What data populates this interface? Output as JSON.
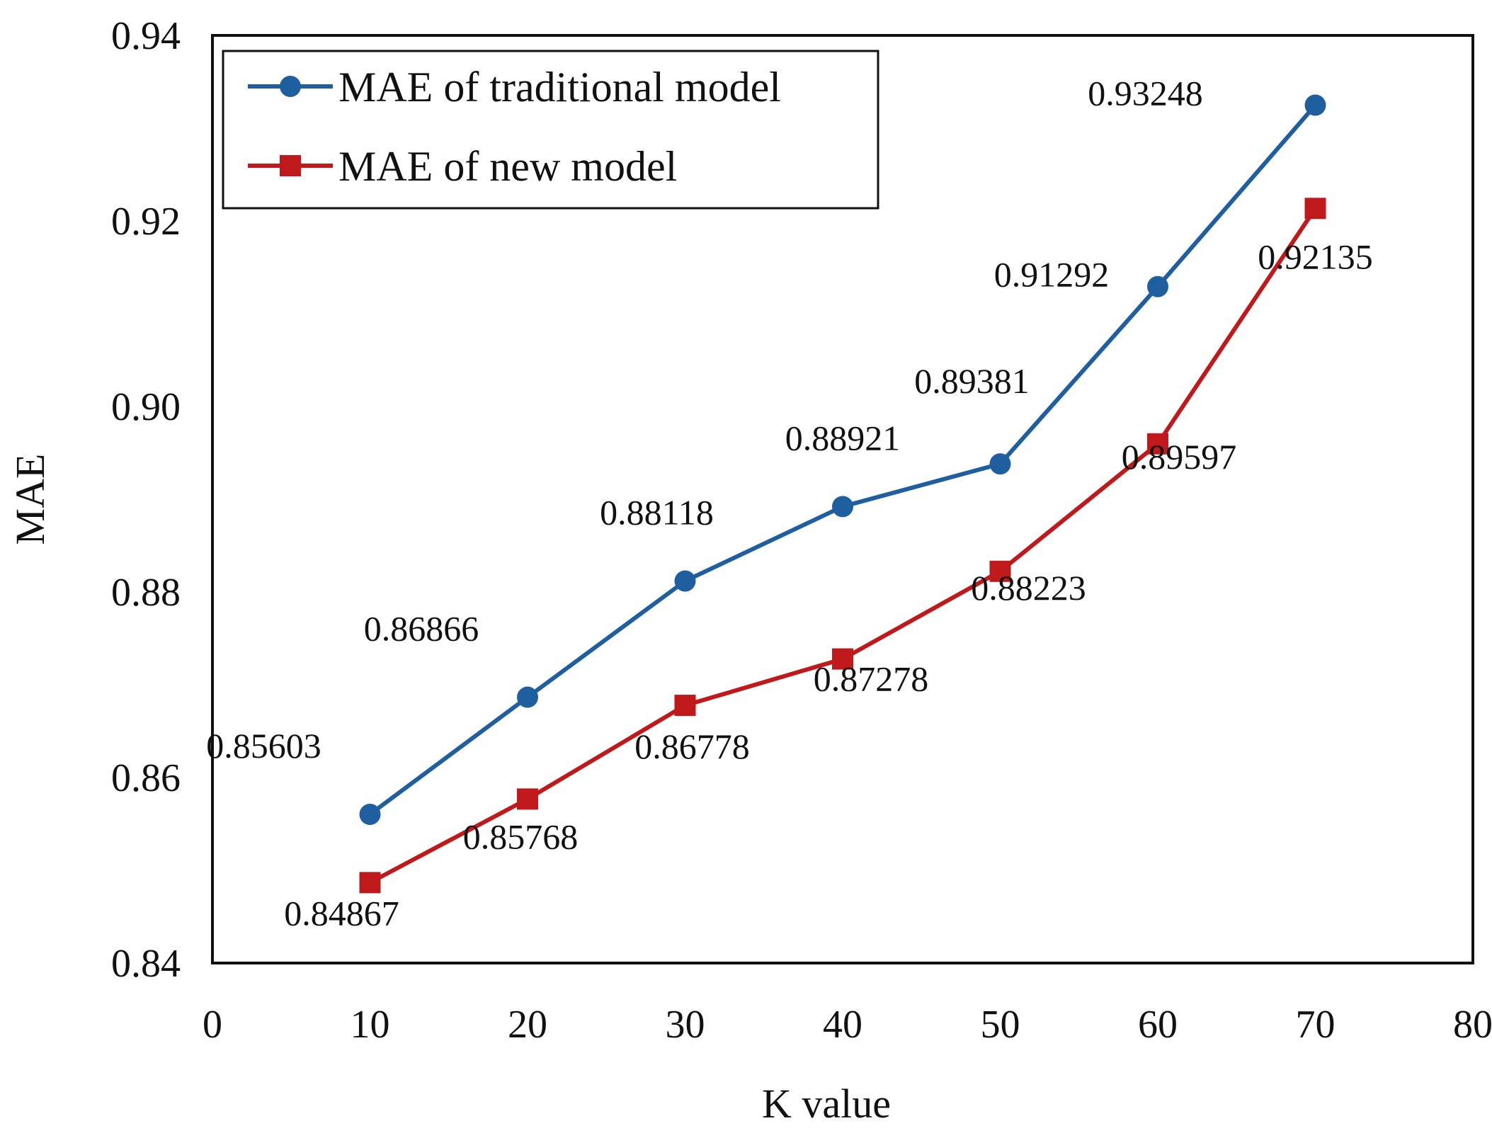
{
  "chart_data": {
    "type": "line",
    "title": "",
    "xlabel": "K value",
    "ylabel": "MAE",
    "xlim": [
      0,
      80
    ],
    "ylim": [
      0.84,
      0.94
    ],
    "xticks": [
      "0",
      "10",
      "20",
      "30",
      "40",
      "50",
      "60",
      "70",
      "80"
    ],
    "yticks": [
      "0.84",
      "0.86",
      "0.88",
      "0.90",
      "0.92",
      "0.94"
    ],
    "x": [
      10,
      20,
      30,
      40,
      50,
      60,
      70
    ],
    "grid": false,
    "legend_position": "top-left",
    "series": [
      {
        "name": "MAE of traditional model",
        "color": "#1f5fa0",
        "marker": "circle",
        "values": [
          0.85603,
          0.86866,
          0.88118,
          0.88921,
          0.89381,
          0.91292,
          0.93248
        ],
        "labels": [
          "0.85603",
          "0.86866",
          "0.88118",
          "0.88921",
          "0.89381",
          "0.91292",
          "0.93248"
        ],
        "label_placement": "above"
      },
      {
        "name": "MAE of new model",
        "color": "#c0191c",
        "marker": "square",
        "values": [
          0.84867,
          0.85768,
          0.86778,
          0.87278,
          0.88223,
          0.89597,
          0.92135
        ],
        "labels": [
          "0.84867",
          "0.85768",
          "0.86778",
          "0.87278",
          "0.88223",
          "0.89597",
          "0.92135"
        ],
        "label_placement": "below"
      }
    ]
  }
}
